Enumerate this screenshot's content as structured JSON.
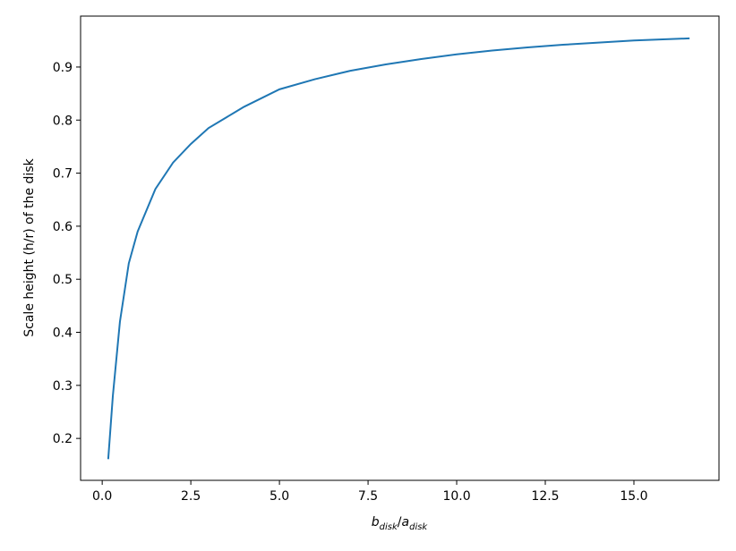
{
  "chart_data": {
    "type": "line",
    "xlabel": [
      "b",
      "disk",
      "/",
      "a",
      "disk"
    ],
    "ylabel": "Scale height (h/r) of the disk",
    "x": [
      0.17,
      0.3,
      0.5,
      0.75,
      1.0,
      1.5,
      2.0,
      2.5,
      3.0,
      4.0,
      5.0,
      6.0,
      7.0,
      8.0,
      9.0,
      10.0,
      11.0,
      12.0,
      13.0,
      14.0,
      15.0,
      16.57
    ],
    "series": [
      {
        "color": "#1f77b4",
        "values": [
          0.161,
          0.28,
          0.42,
          0.53,
          0.59,
          0.67,
          0.72,
          0.755,
          0.785,
          0.825,
          0.858,
          0.877,
          0.893,
          0.905,
          0.915,
          0.924,
          0.931,
          0.937,
          0.942,
          0.946,
          0.95,
          0.954
        ]
      }
    ],
    "xlim": [
      -0.61,
      17.4
    ],
    "ylim": [
      0.121,
      0.996
    ],
    "xticks": [
      {
        "value": 0,
        "label": "0.0"
      },
      {
        "value": 2.5,
        "label": "2.5"
      },
      {
        "value": 5,
        "label": "5.0"
      },
      {
        "value": 7.5,
        "label": "7.5"
      },
      {
        "value": 10,
        "label": "10.0"
      },
      {
        "value": 12.5,
        "label": "12.5"
      },
      {
        "value": 15,
        "label": "15.0"
      }
    ],
    "yticks": [
      0.2,
      0.3,
      0.4,
      0.5,
      0.6,
      0.7,
      0.8,
      0.9
    ]
  }
}
